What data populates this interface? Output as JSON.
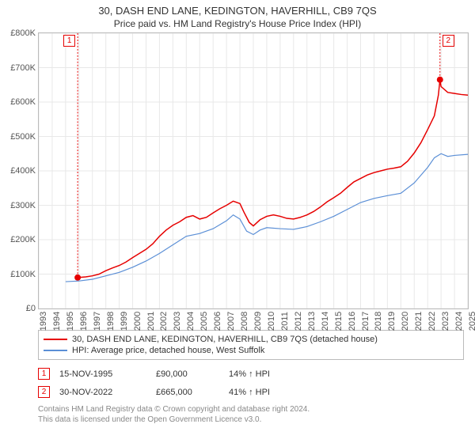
{
  "title": "30, DASH END LANE, KEDINGTON, HAVERHILL, CB9 7QS",
  "subtitle": "Price paid vs. HM Land Registry's House Price Index (HPI)",
  "chart": {
    "type": "line",
    "background_color": "#ffffff",
    "grid_color": "#e8e8e8",
    "border_color": "#bbbbbb",
    "label_fontsize": 11,
    "label_color": "#555555",
    "ylim": [
      0,
      800000
    ],
    "ytick_step": 100000,
    "yticks": [
      "£0",
      "£100K",
      "£200K",
      "£300K",
      "£400K",
      "£500K",
      "£600K",
      "£700K",
      "£800K"
    ],
    "xlim": [
      1993,
      2025
    ],
    "xticks": [
      1993,
      1994,
      1995,
      1996,
      1997,
      1998,
      1999,
      2000,
      2001,
      2002,
      2003,
      2004,
      2005,
      2006,
      2007,
      2008,
      2009,
      2010,
      2011,
      2012,
      2013,
      2014,
      2015,
      2016,
      2017,
      2018,
      2019,
      2020,
      2021,
      2022,
      2023,
      2024,
      2025
    ],
    "series": [
      {
        "name": "30, DASH END LANE, KEDINGTON, HAVERHILL, CB9 7QS (detached house)",
        "color": "#e60000",
        "line_width": 1.5,
        "points": [
          [
            1995.9,
            90000
          ],
          [
            1996.5,
            92000
          ],
          [
            1997,
            95000
          ],
          [
            1997.5,
            100000
          ],
          [
            1998,
            110000
          ],
          [
            1998.5,
            118000
          ],
          [
            1999,
            125000
          ],
          [
            1999.5,
            135000
          ],
          [
            2000,
            148000
          ],
          [
            2000.5,
            160000
          ],
          [
            2001,
            172000
          ],
          [
            2001.5,
            188000
          ],
          [
            2002,
            210000
          ],
          [
            2002.5,
            228000
          ],
          [
            2003,
            242000
          ],
          [
            2003.5,
            252000
          ],
          [
            2004,
            265000
          ],
          [
            2004.5,
            270000
          ],
          [
            2005,
            260000
          ],
          [
            2005.5,
            265000
          ],
          [
            2006,
            278000
          ],
          [
            2006.5,
            290000
          ],
          [
            2007,
            300000
          ],
          [
            2007.5,
            312000
          ],
          [
            2008,
            305000
          ],
          [
            2008.3,
            280000
          ],
          [
            2008.7,
            250000
          ],
          [
            2009,
            240000
          ],
          [
            2009.5,
            258000
          ],
          [
            2010,
            268000
          ],
          [
            2010.5,
            272000
          ],
          [
            2011,
            268000
          ],
          [
            2011.5,
            262000
          ],
          [
            2012,
            260000
          ],
          [
            2012.5,
            265000
          ],
          [
            2013,
            272000
          ],
          [
            2013.5,
            282000
          ],
          [
            2014,
            295000
          ],
          [
            2014.5,
            310000
          ],
          [
            2015,
            322000
          ],
          [
            2015.5,
            335000
          ],
          [
            2016,
            352000
          ],
          [
            2016.5,
            368000
          ],
          [
            2017,
            378000
          ],
          [
            2017.5,
            388000
          ],
          [
            2018,
            395000
          ],
          [
            2018.5,
            400000
          ],
          [
            2019,
            405000
          ],
          [
            2019.5,
            408000
          ],
          [
            2020,
            412000
          ],
          [
            2020.5,
            428000
          ],
          [
            2021,
            452000
          ],
          [
            2021.5,
            482000
          ],
          [
            2022,
            520000
          ],
          [
            2022.5,
            560000
          ],
          [
            2022.8,
            620000
          ],
          [
            2022.92,
            665000
          ],
          [
            2023,
            645000
          ],
          [
            2023.5,
            628000
          ],
          [
            2024,
            625000
          ],
          [
            2024.5,
            622000
          ],
          [
            2025,
            620000
          ]
        ]
      },
      {
        "name": "HPI: Average price, detached house, West Suffolk",
        "color": "#5b8fd6",
        "line_width": 1.2,
        "points": [
          [
            1995,
            78000
          ],
          [
            1996,
            80000
          ],
          [
            1997,
            85000
          ],
          [
            1998,
            95000
          ],
          [
            1999,
            105000
          ],
          [
            2000,
            120000
          ],
          [
            2001,
            138000
          ],
          [
            2002,
            160000
          ],
          [
            2003,
            185000
          ],
          [
            2004,
            210000
          ],
          [
            2005,
            218000
          ],
          [
            2006,
            232000
          ],
          [
            2007,
            255000
          ],
          [
            2007.5,
            272000
          ],
          [
            2008,
            260000
          ],
          [
            2008.5,
            225000
          ],
          [
            2009,
            215000
          ],
          [
            2009.5,
            228000
          ],
          [
            2010,
            235000
          ],
          [
            2011,
            232000
          ],
          [
            2012,
            230000
          ],
          [
            2013,
            238000
          ],
          [
            2014,
            252000
          ],
          [
            2015,
            268000
          ],
          [
            2016,
            288000
          ],
          [
            2017,
            308000
          ],
          [
            2018,
            320000
          ],
          [
            2019,
            328000
          ],
          [
            2020,
            335000
          ],
          [
            2021,
            365000
          ],
          [
            2022,
            410000
          ],
          [
            2022.5,
            438000
          ],
          [
            2023,
            450000
          ],
          [
            2023.5,
            442000
          ],
          [
            2024,
            445000
          ],
          [
            2025,
            448000
          ]
        ]
      }
    ],
    "markers": [
      {
        "label": "1",
        "x": 1995.9,
        "y_top": 800000,
        "y_point": 90000,
        "dash_color": "#e60000",
        "point_color": "#e60000"
      },
      {
        "label": "2",
        "x": 2022.92,
        "y_top": 800000,
        "y_point": 665000,
        "dash_color": "#e60000",
        "point_color": "#e60000"
      }
    ]
  },
  "legend": {
    "items": [
      {
        "color": "#e60000",
        "label": "30, DASH END LANE, KEDINGTON, HAVERHILL, CB9 7QS (detached house)"
      },
      {
        "color": "#5b8fd6",
        "label": "HPI: Average price, detached house, West Suffolk"
      }
    ]
  },
  "transactions": [
    {
      "marker": "1",
      "date": "15-NOV-1995",
      "price": "£90,000",
      "hpi_delta": "14% ↑ HPI"
    },
    {
      "marker": "2",
      "date": "30-NOV-2022",
      "price": "£665,000",
      "hpi_delta": "41% ↑ HPI"
    }
  ],
  "attribution_line1": "Contains HM Land Registry data © Crown copyright and database right 2024.",
  "attribution_line2": "This data is licensed under the Open Government Licence v3.0."
}
